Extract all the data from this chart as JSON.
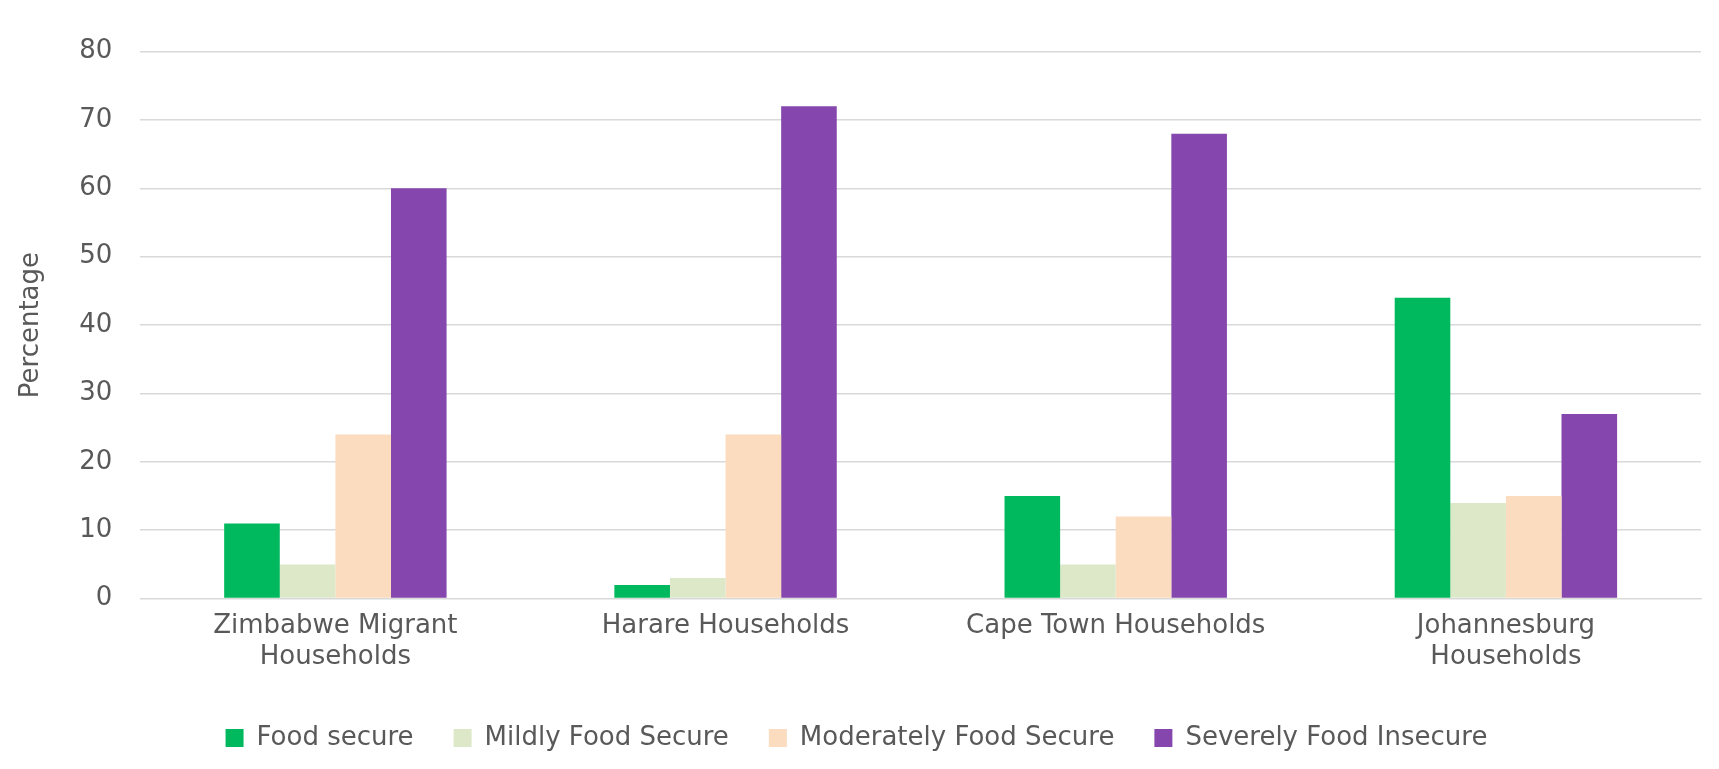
{
  "chart_data": {
    "type": "bar",
    "ylabel": "Percentage",
    "categories": [
      "Zimbabwe Migrant Households",
      "Harare Households",
      "Cape Town Households",
      "Johannesburg Households"
    ],
    "series": [
      {
        "name": "Food secure",
        "color": "#00b85e",
        "values": [
          11,
          2,
          15,
          44
        ]
      },
      {
        "name": "Mildly Food Secure",
        "color": "#dde8c8",
        "values": [
          5,
          3,
          5,
          14
        ]
      },
      {
        "name": "Moderately Food Secure",
        "color": "#fbdcbf",
        "values": [
          24,
          24,
          12,
          15
        ]
      },
      {
        "name": "Severely Food Insecure",
        "color": "#8547ad",
        "values": [
          60,
          72,
          68,
          27
        ]
      }
    ],
    "ylim": [
      0,
      80
    ],
    "yticks": [
      0,
      10,
      20,
      30,
      40,
      50,
      60,
      70,
      80
    ],
    "grid": "y",
    "legend": "bottom"
  }
}
